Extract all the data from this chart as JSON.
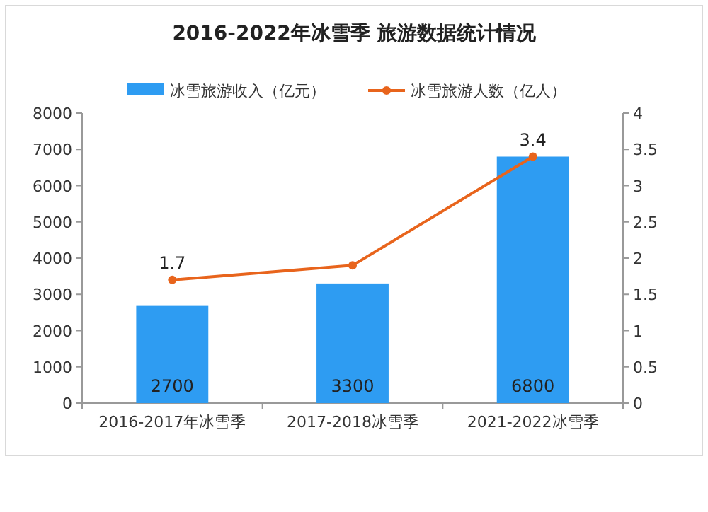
{
  "chart_data": {
    "type": "bar",
    "title": "2016-2022年冰雪季 旅游数据统计情况",
    "categories": [
      "2016-2017年冰雪季",
      "2017-2018冰雪季",
      "2021-2022冰雪季"
    ],
    "series": [
      {
        "name": "冰雪旅游收入（亿元）",
        "color": "#2e9cf2",
        "values": [
          2700,
          3300,
          6800
        ],
        "value_labels": [
          "2700",
          "3300",
          "6800"
        ]
      },
      {
        "name": "冰雪旅游人数（亿人）",
        "type": "line",
        "axis": "y2",
        "color": "#e8641c",
        "values": [
          1.7,
          1.9,
          3.4
        ],
        "value_labels": [
          "1.7",
          null,
          "3.4"
        ]
      }
    ],
    "ylim": [
      0,
      8000
    ],
    "yticks": [
      0,
      1000,
      2000,
      3000,
      4000,
      5000,
      6000,
      7000,
      8000
    ],
    "y2lim": [
      0,
      4
    ],
    "y2ticks": [
      0,
      0.5,
      1,
      1.5,
      2,
      2.5,
      3,
      3.5,
      4
    ],
    "marker": "circle",
    "legend": "top",
    "grid": false
  }
}
